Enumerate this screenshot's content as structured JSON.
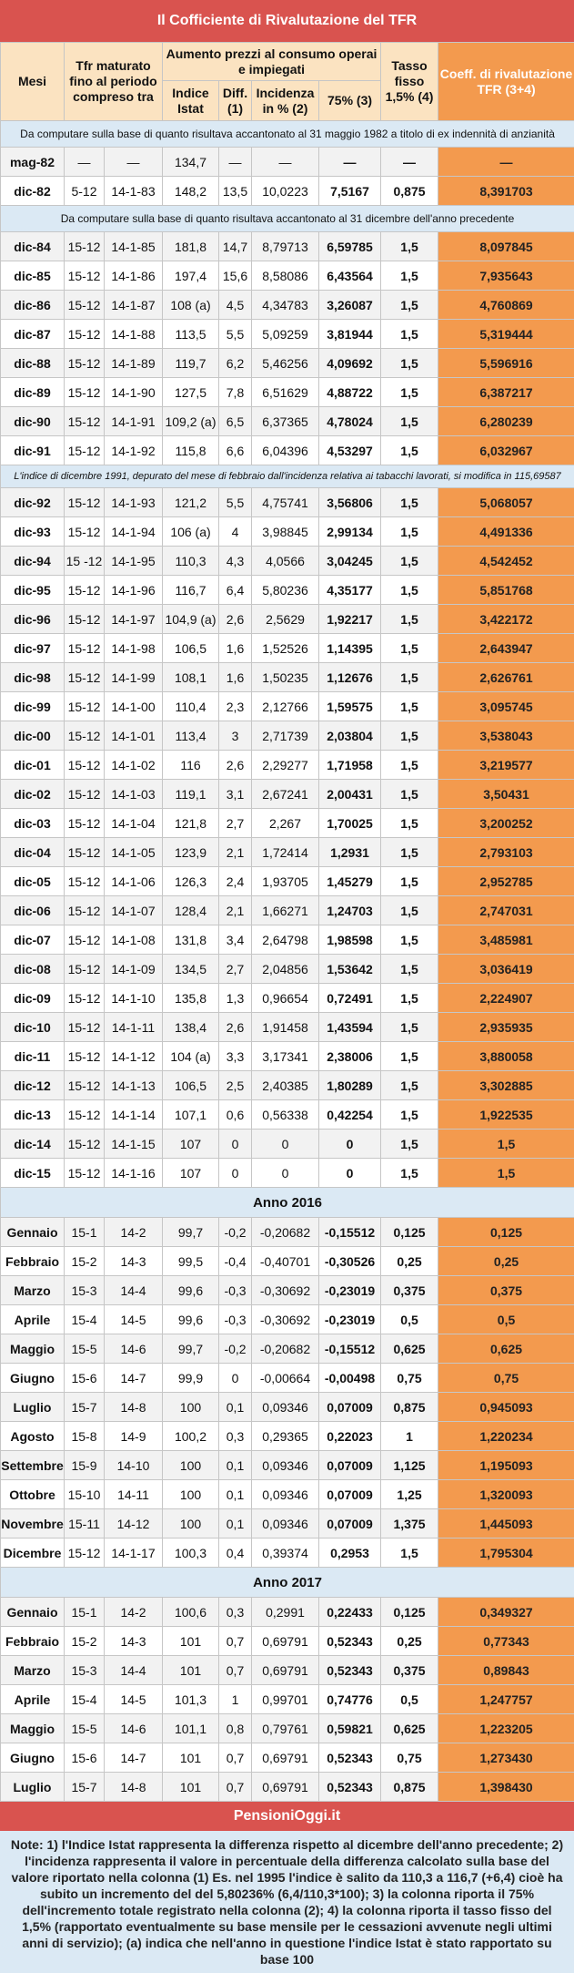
{
  "title": "Il Cofficiente di Rivalutazione del TFR",
  "headers": {
    "mesi": "Mesi",
    "tfr": "Tfr maturato fino al periodo compreso tra",
    "aumento": "Aumento prezzi al consumo operai e impiegati",
    "indice": "Indice Istat",
    "diff": "Diff. (1)",
    "incidenza": "Incidenza in % (2)",
    "p75": "75% (3)",
    "tasso": "Tasso fisso 1,5% (4)",
    "coef": "Coeff. di rivalutazione TFR (3+4)"
  },
  "separators": {
    "s1": "Da computare sulla base di quanto risultava accantonato al 31 maggio 1982 a titolo di ex indennità di anzianità",
    "s2": "Da computare sulla base di quanto risultava accantonato al 31 dicembre dell'anno precedente",
    "s3": "L'indice di dicembre 1991, depurato del mese di febbraio dall'incidenza relativa ai tabacchi lavorati, si modifica in 115,69587",
    "y2016": "Anno 2016",
    "y2017": "Anno 2017"
  },
  "groups": [
    {
      "sep": "s1",
      "rows": [
        [
          "mag-82",
          "—",
          "—",
          "134,7",
          "—",
          "—",
          "—",
          "—",
          "—"
        ],
        [
          "dic-82",
          "5-12",
          "14-1-83",
          "148,2",
          "13,5",
          "10,0223",
          "7,5167",
          "0,875",
          "8,391703"
        ]
      ]
    },
    {
      "sep": "s2",
      "rows": [
        [
          "dic-84",
          "15-12",
          "14-1-85",
          "181,8",
          "14,7",
          "8,79713",
          "6,59785",
          "1,5",
          "8,097845"
        ],
        [
          "dic-85",
          "15-12",
          "14-1-86",
          "197,4",
          "15,6",
          "8,58086",
          "6,43564",
          "1,5",
          "7,935643"
        ],
        [
          "dic-86",
          "15-12",
          "14-1-87",
          "108 (a)",
          "4,5",
          "4,34783",
          "3,26087",
          "1,5",
          "4,760869"
        ],
        [
          "dic-87",
          "15-12",
          "14-1-88",
          "113,5",
          "5,5",
          "5,09259",
          "3,81944",
          "1,5",
          "5,319444"
        ],
        [
          "dic-88",
          "15-12",
          "14-1-89",
          "119,7",
          "6,2",
          "5,46256",
          "4,09692",
          "1,5",
          "5,596916"
        ],
        [
          "dic-89",
          "15-12",
          "14-1-90",
          "127,5",
          "7,8",
          "6,51629",
          "4,88722",
          "1,5",
          "6,387217"
        ],
        [
          "dic-90",
          "15-12",
          "14-1-91",
          "109,2 (a)",
          "6,5",
          "6,37365",
          "4,78024",
          "1,5",
          "6,280239"
        ],
        [
          "dic-91",
          "15-12",
          "14-1-92",
          "115,8",
          "6,6",
          "6,04396",
          "4,53297",
          "1,5",
          "6,032967"
        ]
      ]
    },
    {
      "sep": "s3",
      "rows": [
        [
          "dic-92",
          "15-12",
          "14-1-93",
          "121,2",
          "5,5",
          "4,75741",
          "3,56806",
          "1,5",
          "5,068057"
        ],
        [
          "dic-93",
          "15-12",
          "14-1-94",
          "106 (a)",
          "4",
          "3,98845",
          "2,99134",
          "1,5",
          "4,491336"
        ],
        [
          "dic-94",
          "15 -12",
          "14-1-95",
          "110,3",
          "4,3",
          "4,0566",
          "3,04245",
          "1,5",
          "4,542452"
        ],
        [
          "dic-95",
          "15-12",
          "14-1-96",
          "116,7",
          "6,4",
          "5,80236",
          "4,35177",
          "1,5",
          "5,851768"
        ],
        [
          "dic-96",
          "15-12",
          "14-1-97",
          "104,9 (a)",
          "2,6",
          "2,5629",
          "1,92217",
          "1,5",
          "3,422172"
        ],
        [
          "dic-97",
          "15-12",
          "14-1-98",
          "106,5",
          "1,6",
          "1,52526",
          "1,14395",
          "1,5",
          "2,643947"
        ],
        [
          "dic-98",
          "15-12",
          "14-1-99",
          "108,1",
          "1,6",
          "1,50235",
          "1,12676",
          "1,5",
          "2,626761"
        ],
        [
          "dic-99",
          "15-12",
          "14-1-00",
          "110,4",
          "2,3",
          "2,12766",
          "1,59575",
          "1,5",
          "3,095745"
        ],
        [
          "dic-00",
          "15-12",
          "14-1-01",
          "113,4",
          "3",
          "2,71739",
          "2,03804",
          "1,5",
          "3,538043"
        ],
        [
          "dic-01",
          "15-12",
          "14-1-02",
          "116",
          "2,6",
          "2,29277",
          "1,71958",
          "1,5",
          "3,219577"
        ],
        [
          "dic-02",
          "15-12",
          "14-1-03",
          "119,1",
          "3,1",
          "2,67241",
          "2,00431",
          "1,5",
          "3,50431"
        ],
        [
          "dic-03",
          "15-12",
          "14-1-04",
          "121,8",
          "2,7",
          "2,267",
          "1,70025",
          "1,5",
          "3,200252"
        ],
        [
          "dic-04",
          "15-12",
          "14-1-05",
          "123,9",
          "2,1",
          "1,72414",
          "1,2931",
          "1,5",
          "2,793103"
        ],
        [
          "dic-05",
          "15-12",
          "14-1-06",
          "126,3",
          "2,4",
          "1,93705",
          "1,45279",
          "1,5",
          "2,952785"
        ],
        [
          "dic-06",
          "15-12",
          "14-1-07",
          "128,4",
          "2,1",
          "1,66271",
          "1,24703",
          "1,5",
          "2,747031"
        ],
        [
          "dic-07",
          "15-12",
          "14-1-08",
          "131,8",
          "3,4",
          "2,64798",
          "1,98598",
          "1,5",
          "3,485981"
        ],
        [
          "dic-08",
          "15-12",
          "14-1-09",
          "134,5",
          "2,7",
          "2,04856",
          "1,53642",
          "1,5",
          "3,036419"
        ],
        [
          "dic-09",
          "15-12",
          "14-1-10",
          "135,8",
          "1,3",
          "0,96654",
          "0,72491",
          "1,5",
          "2,224907"
        ],
        [
          "dic-10",
          "15-12",
          "14-1-11",
          "138,4",
          "2,6",
          "1,91458",
          "1,43594",
          "1,5",
          "2,935935"
        ],
        [
          "dic-11",
          "15-12",
          "14-1-12",
          "104 (a)",
          "3,3",
          "3,17341",
          "2,38006",
          "1,5",
          "3,880058"
        ],
        [
          "dic-12",
          "15-12",
          "14-1-13",
          "106,5",
          "2,5",
          "2,40385",
          "1,80289",
          "1,5",
          "3,302885"
        ],
        [
          "dic-13",
          "15-12",
          "14-1-14",
          "107,1",
          "0,6",
          "0,56338",
          "0,42254",
          "1,5",
          "1,922535"
        ],
        [
          "dic-14",
          "15-12",
          "14-1-15",
          "107",
          "0",
          "0",
          "0",
          "1,5",
          "1,5"
        ],
        [
          "dic-15",
          "15-12",
          "14-1-16",
          "107",
          "0",
          "0",
          "0",
          "1,5",
          "1,5"
        ]
      ]
    },
    {
      "sep": "y2016",
      "rows": [
        [
          "Gennaio",
          "15-1",
          "14-2",
          "99,7",
          "-0,2",
          "-0,20682",
          "-0,15512",
          "0,125",
          "0,125"
        ],
        [
          "Febbraio",
          "15-2",
          "14-3",
          "99,5",
          "-0,4",
          "-0,40701",
          "-0,30526",
          "0,25",
          "0,25"
        ],
        [
          "Marzo",
          "15-3",
          "14-4",
          "99,6",
          "-0,3",
          "-0,30692",
          "-0,23019",
          "0,375",
          "0,375"
        ],
        [
          "Aprile",
          "15-4",
          "14-5",
          "99,6",
          "-0,3",
          "-0,30692",
          "-0,23019",
          "0,5",
          "0,5"
        ],
        [
          "Maggio",
          "15-5",
          "14-6",
          "99,7",
          "-0,2",
          "-0,20682",
          "-0,15512",
          "0,625",
          "0,625"
        ],
        [
          "Giugno",
          "15-6",
          "14-7",
          "99,9",
          "0",
          "-0,00664",
          "-0,00498",
          "0,75",
          "0,75"
        ],
        [
          "Luglio",
          "15-7",
          "14-8",
          "100",
          "0,1",
          "0,09346",
          "0,07009",
          "0,875",
          "0,945093"
        ],
        [
          "Agosto",
          "15-8",
          "14-9",
          "100,2",
          "0,3",
          "0,29365",
          "0,22023",
          "1",
          "1,220234"
        ],
        [
          "Settembre",
          "15-9",
          "14-10",
          "100",
          "0,1",
          "0,09346",
          "0,07009",
          "1,125",
          "1,195093"
        ],
        [
          "Ottobre",
          "15-10",
          "14-11",
          "100",
          "0,1",
          "0,09346",
          "0,07009",
          "1,25",
          "1,320093"
        ],
        [
          "Novembre",
          "15-11",
          "14-12",
          "100",
          "0,1",
          "0,09346",
          "0,07009",
          "1,375",
          "1,445093"
        ],
        [
          "Dicembre",
          "15-12",
          "14-1-17",
          "100,3",
          "0,4",
          "0,39374",
          "0,2953",
          "1,5",
          "1,795304"
        ]
      ]
    },
    {
      "sep": "y2017",
      "rows": [
        [
          "Gennaio",
          "15-1",
          "14-2",
          "100,6",
          "0,3",
          "0,2991",
          "0,22433",
          "0,125",
          "0,349327"
        ],
        [
          "Febbraio",
          "15-2",
          "14-3",
          "101",
          "0,7",
          "0,69791",
          "0,52343",
          "0,25",
          "0,77343"
        ],
        [
          "Marzo",
          "15-3",
          "14-4",
          "101",
          "0,7",
          "0,69791",
          "0,52343",
          "0,375",
          "0,89843"
        ],
        [
          "Aprile",
          "15-4",
          "14-5",
          "101,3",
          "1",
          "0,99701",
          "0,74776",
          "0,5",
          "1,247757"
        ],
        [
          "Maggio",
          "15-5",
          "14-6",
          "101,1",
          "0,8",
          "0,79761",
          "0,59821",
          "0,625",
          "1,223205"
        ],
        [
          "Giugno",
          "15-6",
          "14-7",
          "101",
          "0,7",
          "0,69791",
          "0,52343",
          "0,75",
          "1,273430"
        ],
        [
          "Luglio",
          "15-7",
          "14-8",
          "101",
          "0,7",
          "0,69791",
          "0,52343",
          "0,875",
          "1,398430"
        ]
      ]
    }
  ],
  "brand": "PensioniOggi.it",
  "notes": "Note: 1) l'Indice Istat rappresenta la differenza rispetto al dicembre dell'anno precedente; 2) l'incidenza rappresenta il valore in percentuale della differenza calcolato sulla base del valore riportato nella colonna (1) Es. nel 1995 l'indice è salito da 110,3 a 116,7 (+6,4) cioè ha subito un incremento del del 5,80236% (6,4/110,3*100); 3) la colonna riporta il 75% dell'incremento totale registrato nella colonna (2); 4) la colonna riporta il tasso fisso del 1,5% (rapportato eventualmente su base mensile per le cessazioni avvenute negli ultimi anni di servizio); (a) indica che nell'anno in questione l'indice Istat è stato rapportato su base 100"
}
